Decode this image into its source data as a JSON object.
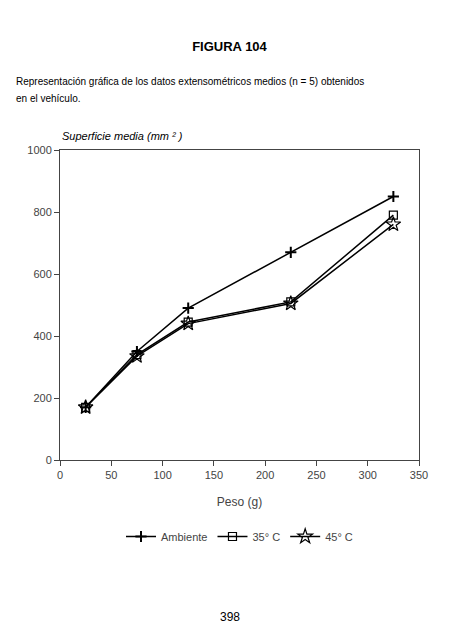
{
  "chart_data": {
    "type": "line",
    "title": "FIGURA 104",
    "subtitle": [
      "Representación gráfica de los datos extensométricos medios (n = 5) obtenidos",
      "en el vehículo."
    ],
    "annotations": [
      "398"
    ],
    "xlabel": "Peso (g)",
    "ylabel": "Superficie media (mm ² )",
    "x": [
      25,
      75,
      125,
      225,
      325
    ],
    "series": [
      {
        "name": "Ambiente",
        "color": "#000000",
        "marker": "plus",
        "values": [
          170,
          350,
          490,
          670,
          850
        ]
      },
      {
        "name": "35° C",
        "color": "#000000",
        "marker": "square",
        "values": [
          170,
          340,
          445,
          510,
          790
        ]
      },
      {
        "name": "45° C",
        "color": "#000000",
        "marker": "star",
        "values": [
          170,
          335,
          440,
          505,
          760
        ]
      }
    ],
    "xlim": [
      0,
      350
    ],
    "ylim": [
      0,
      1000
    ],
    "xticks": [
      0,
      50,
      100,
      150,
      200,
      250,
      300,
      350
    ],
    "yticks": [
      0,
      200,
      400,
      600,
      800,
      1000
    ],
    "grid": false,
    "legend": "bottom"
  }
}
